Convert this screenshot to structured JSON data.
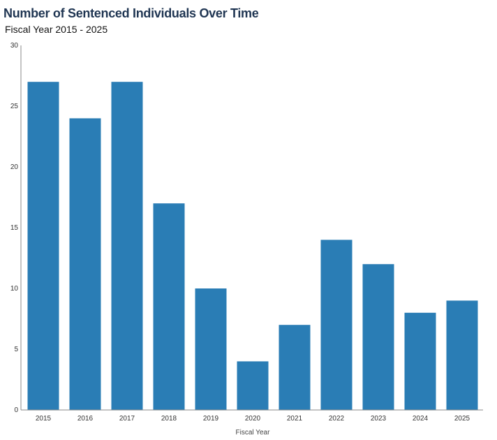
{
  "chart_data": {
    "type": "bar",
    "title": "Number of Sentenced Individuals Over Time",
    "subtitle": "Fiscal Year 2015 - 2025",
    "xlabel": "Fiscal Year",
    "ylabel": "",
    "categories": [
      "2015",
      "2016",
      "2017",
      "2018",
      "2019",
      "2020",
      "2021",
      "2022",
      "2023",
      "2024",
      "2025"
    ],
    "values": [
      27,
      24,
      27,
      17,
      10,
      4,
      7,
      14,
      12,
      8,
      9
    ],
    "ylim": [
      0,
      30
    ],
    "yticks": [
      "0",
      "5",
      "10",
      "15",
      "20",
      "25",
      "30"
    ],
    "grid": false,
    "legend": "none",
    "bar_color": "#2a7db5",
    "axis_color": "#888888"
  }
}
